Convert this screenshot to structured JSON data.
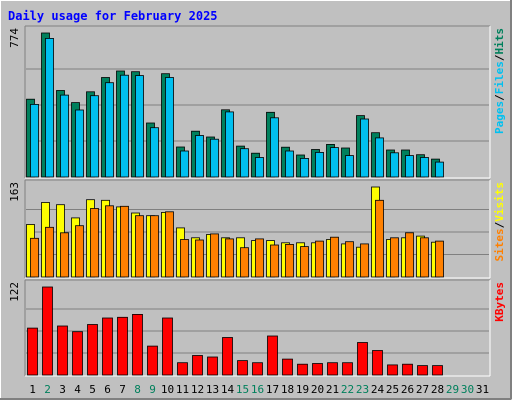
{
  "colors": {
    "background": "#c0c0c0",
    "grid": "#808080",
    "hits": "#00805c",
    "files": "#00c0f0",
    "pages": "#00c0f0",
    "visits": "#ffff00",
    "sites": "#ff8000",
    "kbytes": "#ff0000",
    "title": "#0000ff",
    "day_weekday": "#000000",
    "day_weekend": "#00805c"
  },
  "chart_data": {
    "type": "bar",
    "title": "Daily usage for February 2025",
    "x_labels": [
      "1",
      "2",
      "3",
      "4",
      "5",
      "6",
      "7",
      "8",
      "9",
      "10",
      "11",
      "12",
      "13",
      "14",
      "15",
      "16",
      "17",
      "18",
      "19",
      "20",
      "21",
      "22",
      "23",
      "24",
      "25",
      "26",
      "27",
      "28",
      "29",
      "30",
      "31"
    ],
    "weekend_days": [
      "2",
      "8",
      "9",
      "15",
      "16",
      "22",
      "23",
      "29",
      "30"
    ],
    "panels": [
      {
        "name": "top",
        "ymax_label": "774",
        "ymax": 774,
        "label_parts": [
          "Pages",
          "/",
          "Files",
          "/",
          "Hits"
        ],
        "label_colors": [
          "pages",
          "slash",
          "files",
          "slash",
          "hits"
        ],
        "series": [
          {
            "name": "Hits",
            "color_key": "hits",
            "values": [
              418,
              774,
              465,
              400,
              458,
              535,
              570,
              566,
              290,
              555,
              161,
              246,
              215,
              361,
              166,
              128,
              348,
              160,
              118,
              148,
              175,
              156,
              330,
              238,
              145,
              145,
              120,
              96,
              0,
              0,
              0
            ]
          },
          {
            "name": "Files",
            "color_key": "files",
            "values": [
              390,
              745,
              440,
              360,
              437,
              507,
              547,
              545,
              265,
              535,
              140,
              223,
              203,
              350,
              152,
              105,
              318,
              140,
              100,
              132,
              158,
              115,
              312,
              210,
              130,
              115,
              105,
              80,
              0,
              0,
              0
            ]
          }
        ]
      },
      {
        "name": "middle",
        "ymax_label": "163",
        "ymax": 163,
        "label_parts": [
          "Sites",
          "/",
          "Visits"
        ],
        "label_colors": [
          "sites",
          "slash",
          "visits"
        ],
        "series": [
          {
            "name": "Visits",
            "color_key": "visits",
            "values": [
              95,
              135,
              131,
              107,
              140,
              139,
              127,
              116,
              111,
              117,
              89,
              71,
              77,
              71,
              71,
              66,
              66,
              62,
              62,
              62,
              68,
              60,
              54,
              163,
              68,
              71,
              74,
              63,
              0,
              0,
              0
            ]
          },
          {
            "name": "Sites",
            "color_key": "sites",
            "values": [
              70,
              90,
              80,
              93,
              124,
              129,
              128,
              111,
              111,
              118,
              68,
              67,
              78,
              69,
              53,
              69,
              58,
              59,
              55,
              65,
              72,
              64,
              60,
              139,
              71,
              80,
              71,
              65,
              0,
              0,
              0
            ]
          }
        ]
      },
      {
        "name": "bottom",
        "ymax_label": "122",
        "ymax": 122,
        "label_parts": [
          "KBytes"
        ],
        "label_colors": [
          "kbytes"
        ],
        "series": [
          {
            "name": "KBytes",
            "color_key": "kbytes",
            "values": [
              65,
              122,
              68,
              60,
              70,
              79,
              80,
              84,
              40,
              79,
              17,
              27,
              25,
              52,
              20,
              17,
              54,
              22,
              15,
              16,
              17,
              17,
              45,
              34,
              14,
              15,
              13,
              13,
              0,
              0,
              0
            ]
          }
        ]
      }
    ]
  }
}
